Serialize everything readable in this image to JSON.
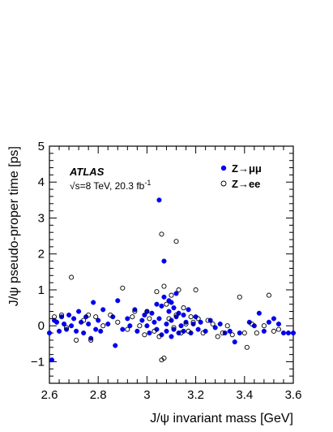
{
  "chart_data": {
    "type": "scatter",
    "xlabel": "J/ψ invariant mass [GeV]",
    "ylabel": "J/ψ pseudo-proper time [ps]",
    "xlim": [
      2.6,
      3.6
    ],
    "ylim": [
      -1.6,
      5.0
    ],
    "x_ticks": [
      2.6,
      2.8,
      3.0,
      3.2,
      3.4,
      3.6
    ],
    "x_tick_labels": [
      "2.6",
      "2.8",
      "3",
      "3.2",
      "3.4",
      "3.6"
    ],
    "y_ticks": [
      -1,
      0,
      1,
      2,
      3,
      4,
      5
    ],
    "y_tick_labels": [
      "−1",
      "0",
      "1",
      "2",
      "3",
      "4",
      "5"
    ],
    "grid": false,
    "annotation": {
      "experiment": "ATLAS",
      "energy_main": "√s=8 TeV, 20.3 fb",
      "energy_sup": "-1"
    },
    "legend_position": "top-right",
    "series": [
      {
        "name": "Z→μμ",
        "marker": "filled-circle",
        "color": "#0000ee",
        "points": [
          [
            2.6,
            -0.2
          ],
          [
            2.61,
            -0.95
          ],
          [
            2.62,
            0.15
          ],
          [
            2.63,
            0.1
          ],
          [
            2.64,
            -0.15
          ],
          [
            2.65,
            0.25
          ],
          [
            2.66,
            0.05
          ],
          [
            2.67,
            -0.1
          ],
          [
            2.68,
            0.3
          ],
          [
            2.69,
            0.0
          ],
          [
            2.7,
            0.2
          ],
          [
            2.71,
            -0.15
          ],
          [
            2.72,
            0.4
          ],
          [
            2.73,
            0.1
          ],
          [
            2.74,
            -0.2
          ],
          [
            2.75,
            0.25
          ],
          [
            2.76,
            0.05
          ],
          [
            2.77,
            -0.35
          ],
          [
            2.78,
            0.65
          ],
          [
            2.79,
            -0.1
          ],
          [
            2.8,
            0.15
          ],
          [
            2.81,
            -0.15
          ],
          [
            2.82,
            0.45
          ],
          [
            2.84,
            0.05
          ],
          [
            2.86,
            0.25
          ],
          [
            2.88,
            0.7
          ],
          [
            2.9,
            -0.1
          ],
          [
            2.92,
            0.2
          ],
          [
            2.93,
            0.0
          ],
          [
            2.95,
            0.45
          ],
          [
            2.96,
            -0.15
          ],
          [
            2.98,
            0.15
          ],
          [
            2.99,
            0.3
          ],
          [
            3.0,
            0.0
          ],
          [
            3.01,
            -0.2
          ],
          [
            3.02,
            0.35
          ],
          [
            3.03,
            0.1
          ],
          [
            3.04,
            -0.1
          ],
          [
            3.05,
            3.5
          ],
          [
            3.05,
            0.2
          ],
          [
            3.06,
            0.55
          ],
          [
            3.06,
            -0.25
          ],
          [
            3.07,
            1.8
          ],
          [
            3.07,
            0.8
          ],
          [
            3.08,
            0.05
          ],
          [
            3.08,
            -0.15
          ],
          [
            3.09,
            0.4
          ],
          [
            3.09,
            0.7
          ],
          [
            3.1,
            -0.3
          ],
          [
            3.1,
            0.15
          ],
          [
            3.11,
            0.5
          ],
          [
            3.11,
            -0.1
          ],
          [
            3.12,
            0.9
          ],
          [
            3.12,
            0.25
          ],
          [
            3.13,
            -0.2
          ],
          [
            3.13,
            0.35
          ],
          [
            3.14,
            0.0
          ],
          [
            3.15,
            0.3
          ],
          [
            3.15,
            -0.15
          ],
          [
            3.16,
            0.1
          ],
          [
            3.17,
            0.45
          ],
          [
            3.18,
            -0.2
          ],
          [
            3.19,
            0.05
          ],
          [
            3.2,
            0.25
          ],
          [
            3.21,
            -0.1
          ],
          [
            3.22,
            0.1
          ],
          [
            3.24,
            -0.15
          ],
          [
            3.26,
            0.15
          ],
          [
            3.28,
            -0.05
          ],
          [
            3.3,
            0.05
          ],
          [
            3.32,
            -0.2
          ],
          [
            3.34,
            -0.15
          ],
          [
            3.36,
            -0.45
          ],
          [
            3.38,
            -0.2
          ],
          [
            3.42,
            0.1
          ],
          [
            3.44,
            0.0
          ],
          [
            3.46,
            0.35
          ],
          [
            3.48,
            -0.15
          ],
          [
            3.5,
            0.1
          ],
          [
            3.52,
            0.2
          ],
          [
            3.54,
            0.05
          ],
          [
            3.56,
            -0.2
          ],
          [
            3.58,
            -0.2
          ],
          [
            3.6,
            -0.2
          ],
          [
            2.87,
            -0.55
          ],
          [
            3.0,
            0.4
          ],
          [
            3.04,
            0.6
          ],
          [
            3.1,
            0.65
          ]
        ]
      },
      {
        "name": "Z→ee",
        "marker": "open-circle",
        "color": "#000000",
        "points": [
          [
            2.62,
            0.25
          ],
          [
            2.65,
            0.3
          ],
          [
            2.67,
            -0.05
          ],
          [
            2.69,
            1.35
          ],
          [
            2.71,
            -0.4
          ],
          [
            2.74,
            0.15
          ],
          [
            2.76,
            0.3
          ],
          [
            2.77,
            -0.4
          ],
          [
            2.79,
            0.25
          ],
          [
            2.82,
            0.0
          ],
          [
            2.85,
            0.3
          ],
          [
            2.88,
            0.1
          ],
          [
            2.9,
            1.05
          ],
          [
            2.92,
            -0.1
          ],
          [
            2.94,
            0.25
          ],
          [
            2.97,
            0.0
          ],
          [
            2.99,
            -0.25
          ],
          [
            3.0,
            0.4
          ],
          [
            3.01,
            0.2
          ],
          [
            3.03,
            -0.15
          ],
          [
            3.04,
            0.95
          ],
          [
            3.05,
            -0.3
          ],
          [
            3.06,
            2.55
          ],
          [
            3.06,
            -0.95
          ],
          [
            3.07,
            -0.9
          ],
          [
            3.07,
            1.1
          ],
          [
            3.08,
            0.6
          ],
          [
            3.09,
            0.2
          ],
          [
            3.1,
            0.85
          ],
          [
            3.11,
            -0.05
          ],
          [
            3.12,
            2.35
          ],
          [
            3.12,
            0.3
          ],
          [
            3.13,
            1.0
          ],
          [
            3.14,
            -0.2
          ],
          [
            3.15,
            0.5
          ],
          [
            3.16,
            0.05
          ],
          [
            3.17,
            -0.15
          ],
          [
            3.18,
            0.25
          ],
          [
            3.19,
            0.1
          ],
          [
            3.21,
            0.2
          ],
          [
            3.23,
            -0.2
          ],
          [
            3.25,
            0.15
          ],
          [
            3.27,
            0.05
          ],
          [
            3.29,
            -0.3
          ],
          [
            3.31,
            -0.2
          ],
          [
            3.33,
            0.0
          ],
          [
            3.35,
            -0.25
          ],
          [
            3.38,
            0.8
          ],
          [
            3.4,
            -0.2
          ],
          [
            3.43,
            0.05
          ],
          [
            3.45,
            -0.2
          ],
          [
            3.48,
            0.0
          ],
          [
            3.5,
            0.85
          ],
          [
            3.52,
            -0.15
          ],
          [
            3.54,
            -0.1
          ],
          [
            3.41,
            -0.6
          ],
          [
            3.2,
            1.0
          ],
          [
            2.95,
            0.4
          ]
        ]
      }
    ]
  }
}
